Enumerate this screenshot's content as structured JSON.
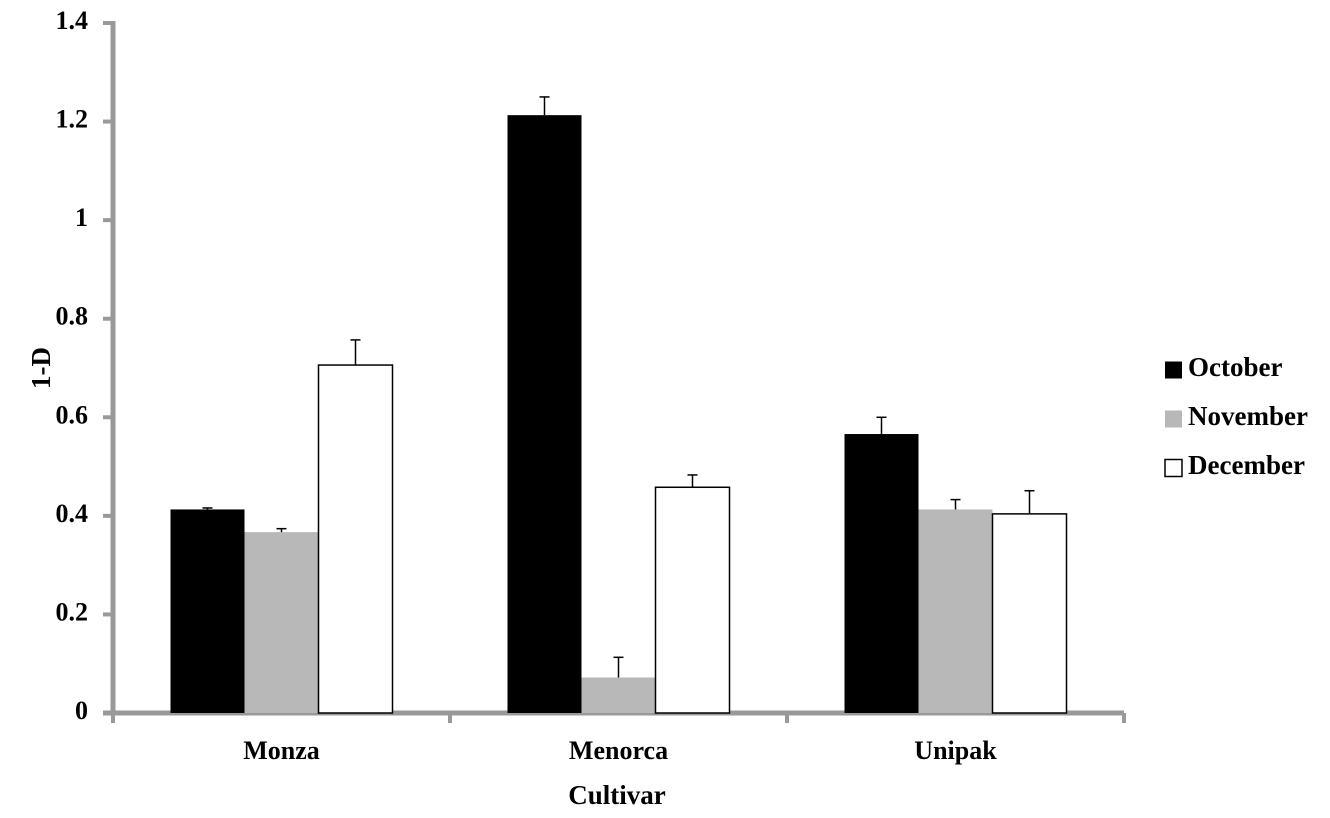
{
  "chart_data": {
    "type": "bar",
    "title": "",
    "xlabel": "Cultivar",
    "ylabel": "1-D",
    "categories": [
      "Monza",
      "Menorca",
      "Unipak"
    ],
    "series": [
      {
        "name": "October",
        "color": "#000000",
        "values": [
          0.413,
          1.213,
          0.566
        ],
        "errors": [
          0.003,
          0.037,
          0.034
        ]
      },
      {
        "name": "November",
        "color": "#b8b8b8",
        "values": [
          0.367,
          0.072,
          0.413
        ],
        "errors": [
          0.007,
          0.041,
          0.02
        ]
      },
      {
        "name": "December",
        "color": "#ffffff",
        "values": [
          0.706,
          0.458,
          0.404
        ],
        "errors": [
          0.051,
          0.025,
          0.047
        ]
      }
    ],
    "ylim": [
      0,
      1.4
    ],
    "yticks": [
      "0",
      "0.2",
      "0.4",
      "0.6",
      "0.8",
      "1",
      "1.2",
      "1.4"
    ],
    "ytick_values": [
      0,
      0.2,
      0.4,
      0.6,
      0.8,
      1.0,
      1.2,
      1.4
    ],
    "grid": false,
    "legend_position": "right",
    "axis_color": "#999999"
  }
}
